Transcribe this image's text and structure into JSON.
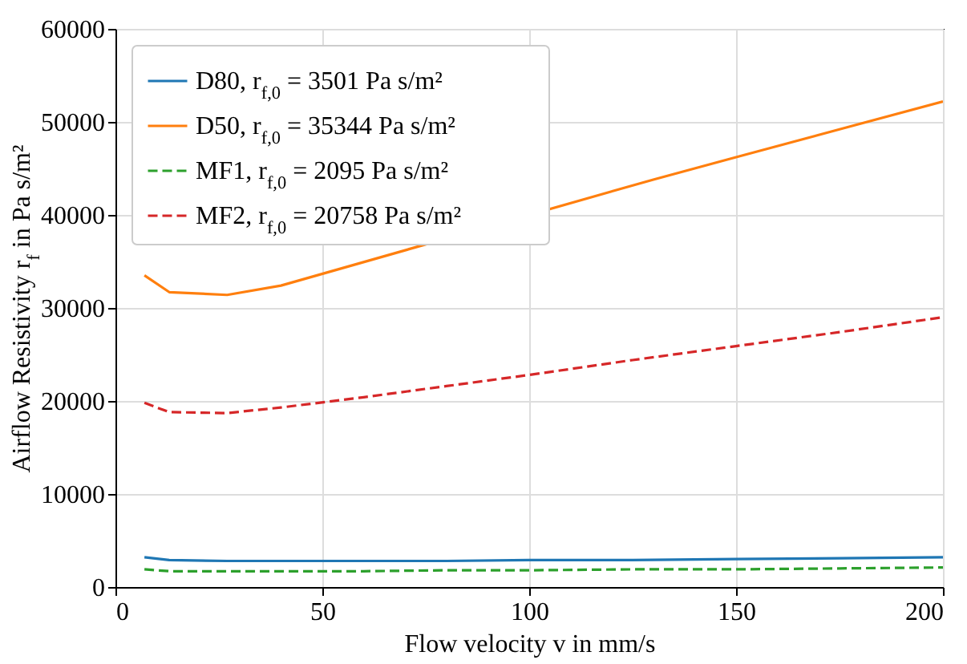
{
  "chart_data": {
    "type": "line",
    "xlabel": "Flow velocity v in mm/s",
    "ylabel": "Airflow Resistivity r$_{f}$ in Pa s/m²",
    "x": [
      7,
      13,
      27,
      40,
      60,
      80,
      100,
      125,
      150,
      175,
      200
    ],
    "series": [
      {
        "name": "D80, r$_{f,0}$ = 3501 Pa s/m²",
        "color": "#1f77b4",
        "line_style": "solid",
        "values": [
          3200,
          2900,
          2800,
          2800,
          2800,
          2800,
          2900,
          2900,
          3000,
          3100,
          3200
        ]
      },
      {
        "name": "D50, r$_{f,0}$ = 35344 Pa s/m²",
        "color": "#ff7f0e",
        "line_style": "solid",
        "x": [
          7,
          13,
          27,
          40,
          55,
          130,
          150,
          175,
          200
        ],
        "values": [
          33500,
          31700,
          31400,
          32400,
          34300,
          43800,
          46200,
          49200,
          52200
        ]
      },
      {
        "name": "MF1, r$_{f,0}$ = 2095 Pa s/m²",
        "color": "#2ca02c",
        "line_style": "dashed",
        "values": [
          1900,
          1700,
          1700,
          1700,
          1700,
          1800,
          1800,
          1900,
          1900,
          2000,
          2100
        ]
      },
      {
        "name": "MF2, r$_{f,0}$ = 20758 Pa s/m²",
        "color": "#d62728",
        "line_style": "dashed",
        "values": [
          19800,
          18800,
          18700,
          19300,
          20400,
          21600,
          22800,
          24400,
          25900,
          27400,
          29000
        ]
      }
    ],
    "xlim": [
      0,
      200
    ],
    "xticks": [
      0,
      50,
      100,
      150,
      200
    ],
    "ylim": [
      0,
      60000
    ],
    "yticks": [
      0,
      10000,
      20000,
      30000,
      40000,
      50000,
      60000
    ],
    "grid": true,
    "legend": "top left",
    "marker": "none"
  }
}
